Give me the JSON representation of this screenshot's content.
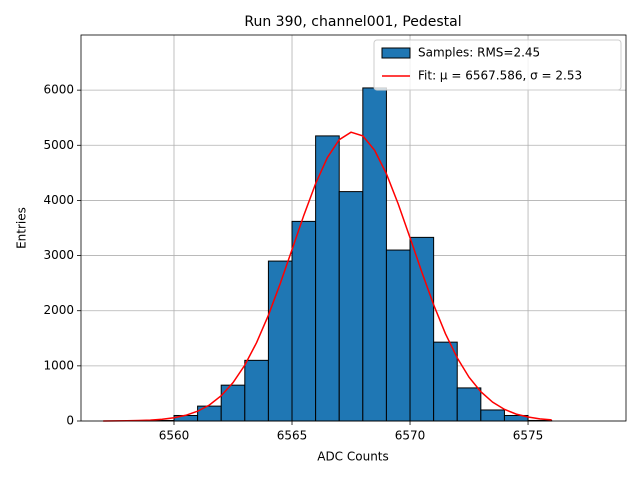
{
  "chart_data": {
    "type": "histogram",
    "title": "Run 390, channel001, Pedestal",
    "xlabel": "ADC Counts",
    "ylabel": "Entries",
    "bins": [
      6557,
      6558,
      6559,
      6560,
      6561,
      6562,
      6563,
      6564,
      6565,
      6566,
      6567,
      6568,
      6569,
      6570,
      6571,
      6572,
      6573,
      6574,
      6575,
      6576
    ],
    "series": [
      {
        "name": "Samples: RMS=2.45",
        "color": "#1f77b4",
        "values": [
          0,
          2,
          10,
          100,
          270,
          650,
          1100,
          2900,
          3620,
          5170,
          4160,
          6040,
          3100,
          3330,
          1430,
          600,
          200,
          100,
          10
        ]
      },
      {
        "name": "Fit: μ = 6567.586, σ = 2.53",
        "type": "line",
        "color": "#ff0000",
        "x": [
          6557,
          6557.5,
          6558,
          6558.5,
          6559,
          6559.5,
          6560,
          6560.5,
          6561,
          6561.5,
          6562,
          6562.5,
          6563,
          6563.5,
          6564,
          6564.5,
          6565,
          6565.5,
          6566,
          6566.5,
          6567,
          6567.5,
          6568,
          6568.5,
          6569,
          6569.5,
          6570,
          6570.5,
          6571,
          6571.5,
          6572,
          6572.5,
          6573,
          6573.5,
          6574,
          6574.5,
          6575,
          6575.5,
          6576
        ],
        "values": [
          0.8,
          1.9,
          4,
          8.3,
          16.5,
          31.7,
          58.5,
          103.8,
          177,
          290,
          458,
          695,
          1013,
          1422,
          1919,
          2491,
          3108,
          3730,
          4305,
          4779,
          5101,
          5237,
          5170,
          4909,
          4482,
          3936,
          3324,
          2700,
          2108,
          1583,
          1144,
          794,
          531,
          341,
          211,
          125,
          72,
          39,
          21
        ]
      }
    ],
    "xlim": [
      6556.06,
      6579.15
    ],
    "ylim": [
      0,
      7000
    ],
    "xticks": [
      6560,
      6565,
      6570,
      6575
    ],
    "yticks": [
      0,
      1000,
      2000,
      3000,
      4000,
      5000,
      6000
    ],
    "grid": true,
    "legend": "upper right"
  }
}
